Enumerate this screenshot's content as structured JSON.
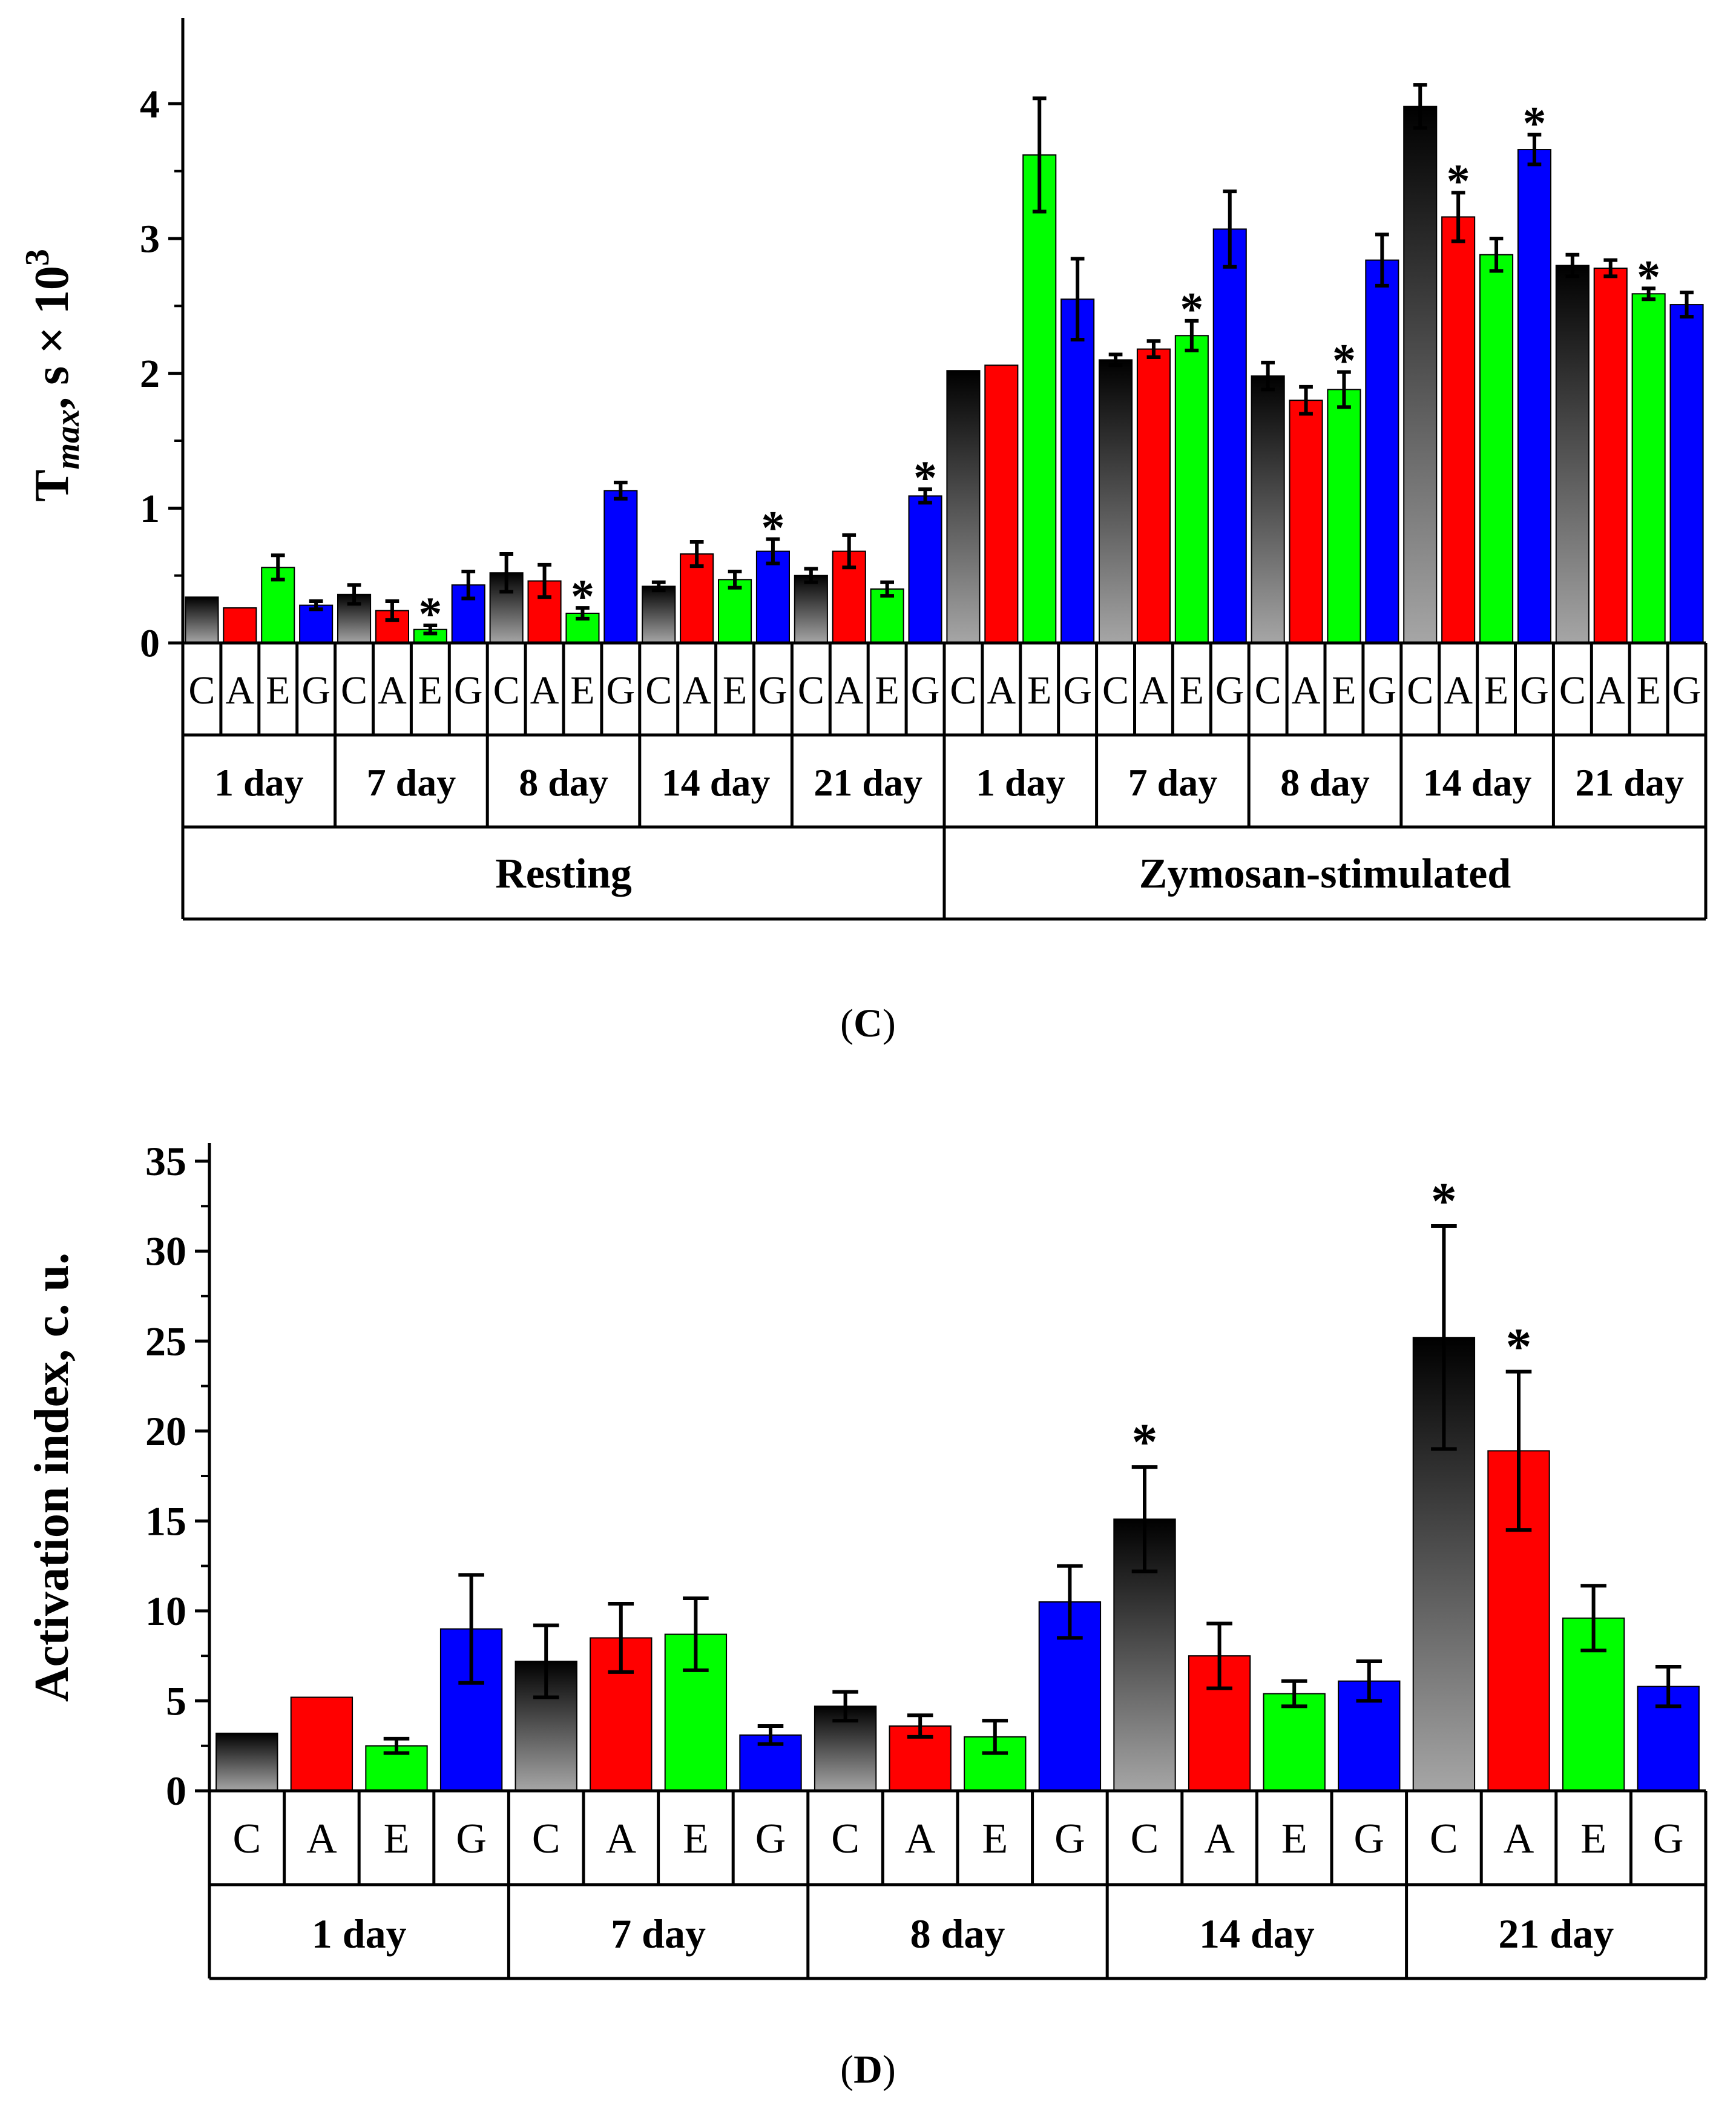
{
  "colors": {
    "C_top": "#000000",
    "C_bottom": "#a6a6a6",
    "A": "#ff0000",
    "E": "#00ff00",
    "G": "#0000ff",
    "axis": "#000000"
  },
  "chart_data": [
    {
      "type": "bar",
      "panel_label": "C",
      "ylabel_main": "T",
      "ylabel_sub": "max",
      "ylabel_rest": ", s × 10",
      "ylabel_sup": "3",
      "ylim": [
        0,
        4.5
      ],
      "yticks": [
        0,
        1,
        2,
        3,
        4
      ],
      "series_letters": [
        "C",
        "A",
        "E",
        "G"
      ],
      "day_labels": [
        "1 day",
        "7 day",
        "8 day",
        "14 day",
        "21 day"
      ],
      "conditions": [
        "Resting",
        "Zymosan-stimulated"
      ],
      "significance_marker": "*",
      "series": [
        {
          "name": "C",
          "values": [
            0.34,
            0.36,
            0.52,
            0.42,
            0.5,
            2.02,
            2.1,
            1.98,
            3.98,
            2.8
          ],
          "errors": [
            0,
            0.07,
            0.14,
            0.03,
            0.05,
            0,
            0.04,
            0.1,
            0.16,
            0.08
          ],
          "significant": [
            false,
            false,
            false,
            false,
            false,
            false,
            false,
            false,
            false,
            false
          ]
        },
        {
          "name": "A",
          "values": [
            0.26,
            0.24,
            0.46,
            0.66,
            0.68,
            2.06,
            2.18,
            1.8,
            3.16,
            2.78
          ],
          "errors": [
            0,
            0.07,
            0.12,
            0.09,
            0.12,
            0,
            0.06,
            0.1,
            0.18,
            0.06
          ],
          "significant": [
            false,
            false,
            false,
            false,
            false,
            false,
            false,
            false,
            true,
            false
          ]
        },
        {
          "name": "E",
          "values": [
            0.56,
            0.1,
            0.22,
            0.47,
            0.4,
            3.62,
            2.28,
            1.88,
            2.88,
            2.59
          ],
          "errors": [
            0.09,
            0.03,
            0.04,
            0.06,
            0.05,
            0.42,
            0.11,
            0.13,
            0.12,
            0.04
          ],
          "significant": [
            false,
            true,
            true,
            false,
            false,
            false,
            true,
            true,
            false,
            true
          ]
        },
        {
          "name": "G",
          "values": [
            0.28,
            0.43,
            1.13,
            0.68,
            1.09,
            2.55,
            3.07,
            2.84,
            3.66,
            2.51
          ],
          "errors": [
            0.03,
            0.1,
            0.06,
            0.09,
            0.05,
            0.3,
            0.28,
            0.19,
            0.11,
            0.09
          ],
          "significant": [
            false,
            false,
            false,
            true,
            true,
            false,
            false,
            false,
            true,
            false
          ]
        }
      ]
    },
    {
      "type": "bar",
      "panel_label": "D",
      "ylabel": "Activation index, c. u.",
      "ylim": [
        0,
        35
      ],
      "yticks": [
        0,
        5,
        10,
        15,
        20,
        25,
        30,
        35
      ],
      "series_letters": [
        "C",
        "A",
        "E",
        "G"
      ],
      "day_labels": [
        "1 day",
        "7 day",
        "8 day",
        "14 day",
        "21 day"
      ],
      "significance_marker": "*",
      "series": [
        {
          "name": "C",
          "values": [
            3.2,
            7.2,
            4.7,
            15.1,
            25.2
          ],
          "errors": [
            0,
            2.0,
            0.8,
            2.9,
            6.2
          ],
          "significant": [
            false,
            false,
            false,
            true,
            true
          ]
        },
        {
          "name": "A",
          "values": [
            5.2,
            8.5,
            3.6,
            7.5,
            18.9
          ],
          "errors": [
            0,
            1.9,
            0.6,
            1.8,
            4.4
          ],
          "significant": [
            false,
            false,
            false,
            false,
            true
          ]
        },
        {
          "name": "E",
          "values": [
            2.5,
            8.7,
            3.0,
            5.4,
            9.6
          ],
          "errors": [
            0.4,
            2.0,
            0.9,
            0.7,
            1.8
          ],
          "significant": [
            false,
            false,
            false,
            false,
            false
          ]
        },
        {
          "name": "G",
          "values": [
            9.0,
            3.1,
            10.5,
            6.1,
            5.8
          ],
          "errors": [
            3.0,
            0.5,
            2.0,
            1.1,
            1.1
          ],
          "significant": [
            false,
            false,
            false,
            false,
            false
          ]
        }
      ]
    }
  ]
}
